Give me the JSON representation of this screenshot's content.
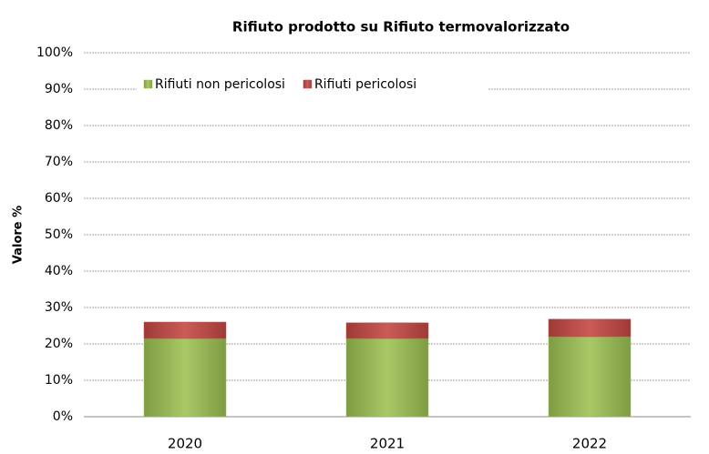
{
  "chart_data": {
    "type": "stacked_bar",
    "title": "Rifiuto prodotto su Rifiuto termovalorizzato",
    "y_label": "Valore %",
    "categories": [
      "2020",
      "2021",
      "2022"
    ],
    "series": [
      {
        "name": "Rifiuti non pericolosi",
        "color": "#9bbb59",
        "values": [
          21.5,
          21.5,
          22
        ]
      },
      {
        "name": "Rifiuti pericolosi",
        "color": "#c0504d",
        "values": [
          4.5,
          4.3,
          4.8
        ]
      }
    ],
    "ylim": [
      0,
      100
    ],
    "yticks": [
      {
        "value": 0,
        "label": "0%"
      },
      {
        "value": 10,
        "label": "10%"
      },
      {
        "value": 20,
        "label": "20%"
      },
      {
        "value": 30,
        "label": "30%"
      },
      {
        "value": 40,
        "label": "40%"
      },
      {
        "value": 50,
        "label": "50%"
      },
      {
        "value": 60,
        "label": "60%"
      },
      {
        "value": 70,
        "label": "70%"
      },
      {
        "value": 80,
        "label": "80%"
      },
      {
        "value": 90,
        "label": "90%"
      },
      {
        "value": 100,
        "label": "100%"
      }
    ],
    "grid": true,
    "legend": "top"
  }
}
